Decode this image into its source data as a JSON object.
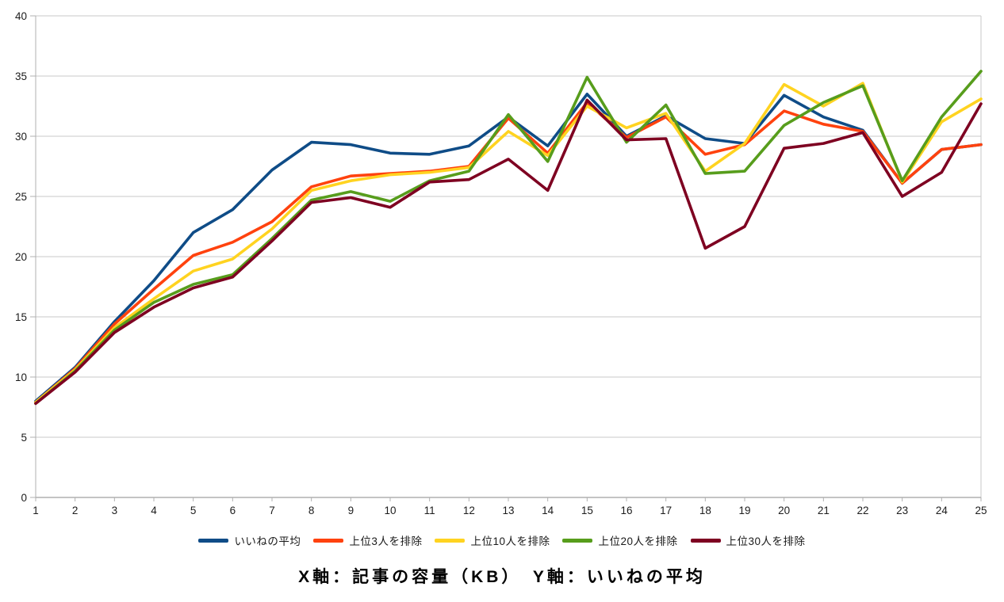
{
  "title": "X軸：記事の容量（KB）　Y軸：いいねの平均",
  "axes": {
    "y_ticks": [
      "0",
      "5",
      "10",
      "15",
      "20",
      "25",
      "30",
      "35",
      "40"
    ],
    "x_ticks": [
      "1",
      "2",
      "3",
      "4",
      "5",
      "6",
      "7",
      "8",
      "9",
      "10",
      "11",
      "12",
      "13",
      "14",
      "15",
      "16",
      "17",
      "18",
      "19",
      "20",
      "21",
      "22",
      "23",
      "24",
      "25"
    ]
  },
  "colors": {
    "grid": "#c9c9c9",
    "axis": "#b0b0b0",
    "tick_label": "#1c1c1c",
    "background": "#ffffff"
  },
  "chart_data": {
    "type": "line",
    "x": [
      1,
      2,
      3,
      4,
      5,
      6,
      7,
      8,
      9,
      10,
      11,
      12,
      13,
      14,
      15,
      16,
      17,
      18,
      19,
      20,
      21,
      22,
      23,
      24,
      25
    ],
    "xlabel": "記事の容量（KB）",
    "ylabel": "いいねの平均",
    "xlim": [
      1,
      25
    ],
    "ylim": [
      0,
      40
    ],
    "ytick_step": 5,
    "grid": "horizontal",
    "legend_position": "bottom",
    "series": [
      {
        "name": "いいねの平均",
        "color": "#0f4c87",
        "values": [
          8.0,
          10.8,
          14.6,
          18.0,
          22.0,
          23.9,
          27.2,
          29.5,
          29.3,
          28.6,
          28.5,
          29.2,
          31.6,
          29.2,
          33.5,
          30.0,
          31.7,
          29.8,
          29.4,
          33.4,
          31.6,
          30.5,
          26.1,
          28.9,
          29.3
        ]
      },
      {
        "name": "上位3人を排除",
        "color": "#ff420e",
        "values": [
          7.9,
          10.7,
          14.4,
          17.3,
          20.1,
          21.2,
          22.9,
          25.8,
          26.7,
          26.9,
          27.1,
          27.5,
          31.5,
          28.6,
          32.8,
          29.9,
          31.6,
          28.5,
          29.3,
          32.1,
          31.0,
          30.4,
          26.1,
          28.9,
          29.3
        ]
      },
      {
        "name": "上位10人を排除",
        "color": "#ffd320",
        "values": [
          7.9,
          10.6,
          14.1,
          16.5,
          18.8,
          19.8,
          22.3,
          25.5,
          26.3,
          26.8,
          27.0,
          27.4,
          30.4,
          28.4,
          32.5,
          30.7,
          31.9,
          27.1,
          29.4,
          34.3,
          32.5,
          34.4,
          26.2,
          31.2,
          33.1
        ]
      },
      {
        "name": "上位20人を排除",
        "color": "#579d1c",
        "values": [
          7.8,
          10.5,
          13.9,
          16.2,
          17.7,
          18.5,
          21.5,
          24.7,
          25.4,
          24.6,
          26.3,
          27.1,
          31.8,
          27.9,
          34.9,
          29.5,
          32.6,
          26.9,
          27.1,
          30.9,
          32.8,
          34.2,
          26.3,
          31.6,
          35.4
        ]
      },
      {
        "name": "上位30人を排除",
        "color": "#7e0021",
        "values": [
          7.8,
          10.4,
          13.7,
          15.8,
          17.4,
          18.3,
          21.3,
          24.5,
          24.9,
          24.1,
          26.2,
          26.4,
          28.1,
          25.5,
          33.0,
          29.7,
          29.8,
          20.7,
          22.5,
          29.0,
          29.4,
          30.3,
          25.0,
          27.0,
          32.7
        ]
      }
    ]
  }
}
